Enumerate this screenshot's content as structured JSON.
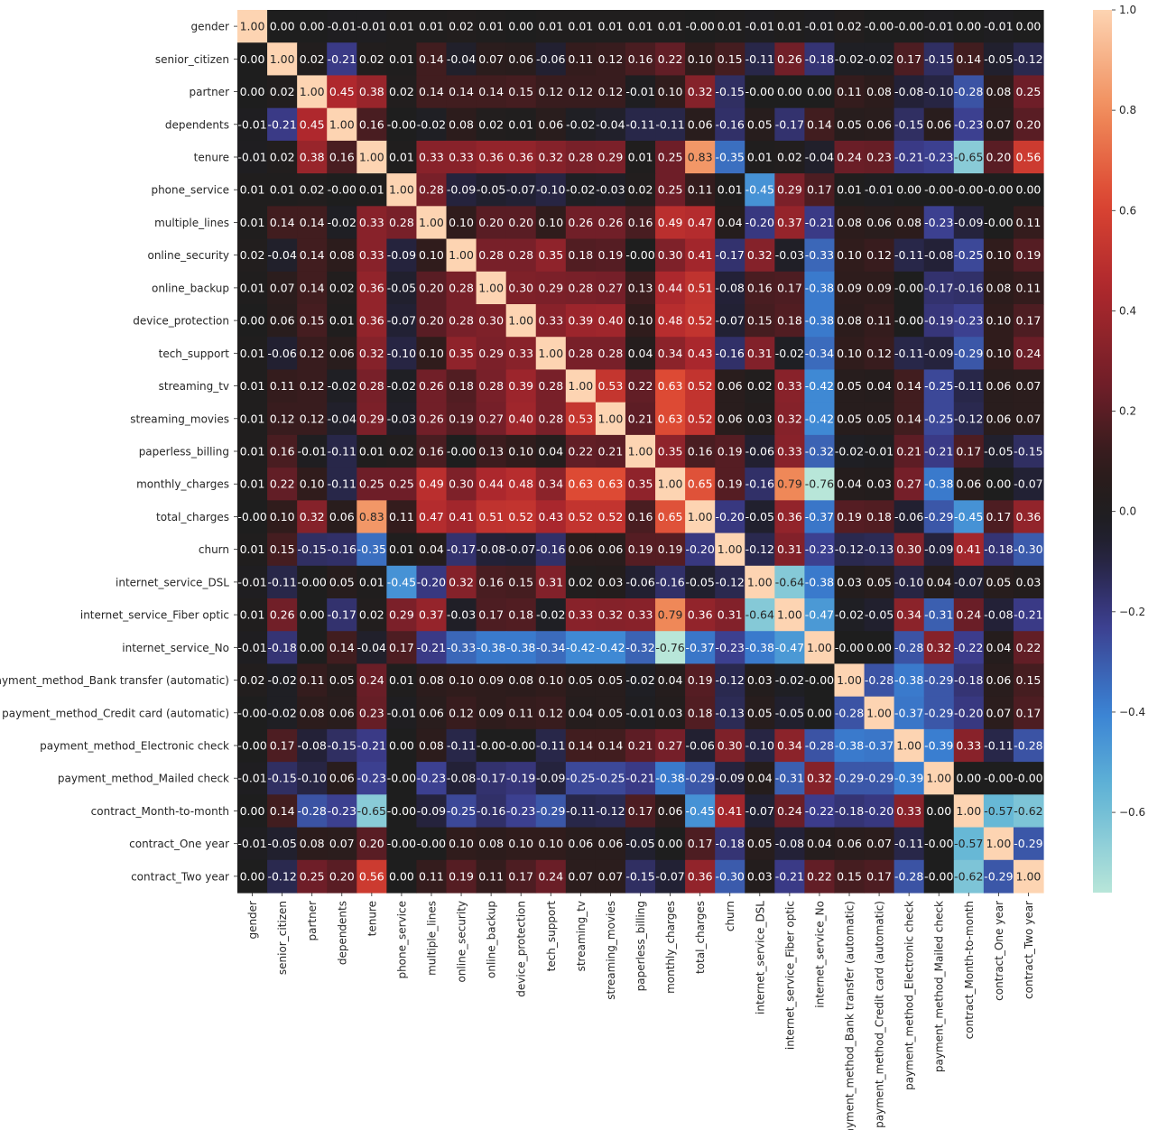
{
  "chart_data": {
    "type": "heatmap",
    "title": "",
    "xlabel": "",
    "ylabel": "",
    "labels": [
      "gender",
      "senior_citizen",
      "partner",
      "dependents",
      "tenure",
      "phone_service",
      "multiple_lines",
      "online_security",
      "online_backup",
      "device_protection",
      "tech_support",
      "streaming_tv",
      "streaming_movies",
      "paperless_billing",
      "monthly_charges",
      "total_charges",
      "churn",
      "internet_service_DSL",
      "internet_service_Fiber optic",
      "internet_service_No",
      "payment_method_Bank transfer (automatic)",
      "payment_method_Credit card (automatic)",
      "payment_method_Electronic check",
      "payment_method_Mailed check",
      "contract_Month-to-month",
      "contract_One year",
      "contract_Two year"
    ],
    "values": [
      [
        "1.00",
        "0.00",
        "0.00",
        "-0.01",
        "-0.01",
        "0.01",
        "0.01",
        "0.02",
        "0.01",
        "0.00",
        "0.01",
        "0.01",
        "0.01",
        "0.01",
        "0.01",
        "-0.00",
        "0.01",
        "-0.01",
        "0.01",
        "-0.01",
        "0.02",
        "-0.00",
        "-0.00",
        "-0.01",
        "0.00",
        "-0.01",
        "0.00"
      ],
      [
        "0.00",
        "1.00",
        "0.02",
        "-0.21",
        "0.02",
        "0.01",
        "0.14",
        "-0.04",
        "0.07",
        "0.06",
        "-0.06",
        "0.11",
        "0.12",
        "0.16",
        "0.22",
        "0.10",
        "0.15",
        "-0.11",
        "0.26",
        "-0.18",
        "-0.02",
        "-0.02",
        "0.17",
        "-0.15",
        "0.14",
        "-0.05",
        "-0.12"
      ],
      [
        "0.00",
        "0.02",
        "1.00",
        "0.45",
        "0.38",
        "0.02",
        "0.14",
        "0.14",
        "0.14",
        "0.15",
        "0.12",
        "0.12",
        "0.12",
        "-0.01",
        "0.10",
        "0.32",
        "-0.15",
        "-0.00",
        "0.00",
        "0.00",
        "0.11",
        "0.08",
        "-0.08",
        "-0.10",
        "-0.28",
        "0.08",
        "0.25"
      ],
      [
        "-0.01",
        "-0.21",
        "0.45",
        "1.00",
        "0.16",
        "-0.00",
        "-0.02",
        "0.08",
        "0.02",
        "0.01",
        "0.06",
        "-0.02",
        "-0.04",
        "-0.11",
        "-0.11",
        "0.06",
        "-0.16",
        "0.05",
        "-0.17",
        "0.14",
        "0.05",
        "0.06",
        "-0.15",
        "0.06",
        "-0.23",
        "0.07",
        "0.20"
      ],
      [
        "-0.01",
        "0.02",
        "0.38",
        "0.16",
        "1.00",
        "0.01",
        "0.33",
        "0.33",
        "0.36",
        "0.36",
        "0.32",
        "0.28",
        "0.29",
        "0.01",
        "0.25",
        "0.83",
        "-0.35",
        "0.01",
        "0.02",
        "-0.04",
        "0.24",
        "0.23",
        "-0.21",
        "-0.23",
        "-0.65",
        "0.20",
        "0.56"
      ],
      [
        "0.01",
        "0.01",
        "0.02",
        "-0.00",
        "0.01",
        "1.00",
        "0.28",
        "-0.09",
        "-0.05",
        "-0.07",
        "-0.10",
        "-0.02",
        "-0.03",
        "0.02",
        "0.25",
        "0.11",
        "0.01",
        "-0.45",
        "0.29",
        "0.17",
        "0.01",
        "-0.01",
        "0.00",
        "-0.00",
        "-0.00",
        "-0.00",
        "0.00"
      ],
      [
        "0.01",
        "0.14",
        "0.14",
        "-0.02",
        "0.33",
        "0.28",
        "1.00",
        "0.10",
        "0.20",
        "0.20",
        "0.10",
        "0.26",
        "0.26",
        "0.16",
        "0.49",
        "0.47",
        "0.04",
        "-0.20",
        "0.37",
        "-0.21",
        "0.08",
        "0.06",
        "0.08",
        "-0.23",
        "-0.09",
        "-0.00",
        "0.11"
      ],
      [
        "0.02",
        "-0.04",
        "0.14",
        "0.08",
        "0.33",
        "-0.09",
        "0.10",
        "1.00",
        "0.28",
        "0.28",
        "0.35",
        "0.18",
        "0.19",
        "-0.00",
        "0.30",
        "0.41",
        "-0.17",
        "0.32",
        "-0.03",
        "-0.33",
        "0.10",
        "0.12",
        "-0.11",
        "-0.08",
        "-0.25",
        "0.10",
        "0.19"
      ],
      [
        "0.01",
        "0.07",
        "0.14",
        "0.02",
        "0.36",
        "-0.05",
        "0.20",
        "0.28",
        "1.00",
        "0.30",
        "0.29",
        "0.28",
        "0.27",
        "0.13",
        "0.44",
        "0.51",
        "-0.08",
        "0.16",
        "0.17",
        "-0.38",
        "0.09",
        "0.09",
        "-0.00",
        "-0.17",
        "-0.16",
        "0.08",
        "0.11"
      ],
      [
        "0.00",
        "0.06",
        "0.15",
        "0.01",
        "0.36",
        "-0.07",
        "0.20",
        "0.28",
        "0.30",
        "1.00",
        "0.33",
        "0.39",
        "0.40",
        "0.10",
        "0.48",
        "0.52",
        "-0.07",
        "0.15",
        "0.18",
        "-0.38",
        "0.08",
        "0.11",
        "-0.00",
        "-0.19",
        "-0.23",
        "0.10",
        "0.17"
      ],
      [
        "0.01",
        "-0.06",
        "0.12",
        "0.06",
        "0.32",
        "-0.10",
        "0.10",
        "0.35",
        "0.29",
        "0.33",
        "1.00",
        "0.28",
        "0.28",
        "0.04",
        "0.34",
        "0.43",
        "-0.16",
        "0.31",
        "-0.02",
        "-0.34",
        "0.10",
        "0.12",
        "-0.11",
        "-0.09",
        "-0.29",
        "0.10",
        "0.24"
      ],
      [
        "0.01",
        "0.11",
        "0.12",
        "-0.02",
        "0.28",
        "-0.02",
        "0.26",
        "0.18",
        "0.28",
        "0.39",
        "0.28",
        "1.00",
        "0.53",
        "0.22",
        "0.63",
        "0.52",
        "0.06",
        "0.02",
        "0.33",
        "-0.42",
        "0.05",
        "0.04",
        "0.14",
        "-0.25",
        "-0.11",
        "0.06",
        "0.07"
      ],
      [
        "0.01",
        "0.12",
        "0.12",
        "-0.04",
        "0.29",
        "-0.03",
        "0.26",
        "0.19",
        "0.27",
        "0.40",
        "0.28",
        "0.53",
        "1.00",
        "0.21",
        "0.63",
        "0.52",
        "0.06",
        "0.03",
        "0.32",
        "-0.42",
        "0.05",
        "0.05",
        "0.14",
        "-0.25",
        "-0.12",
        "0.06",
        "0.07"
      ],
      [
        "0.01",
        "0.16",
        "-0.01",
        "-0.11",
        "0.01",
        "0.02",
        "0.16",
        "-0.00",
        "0.13",
        "0.10",
        "0.04",
        "0.22",
        "0.21",
        "1.00",
        "0.35",
        "0.16",
        "0.19",
        "-0.06",
        "0.33",
        "-0.32",
        "-0.02",
        "-0.01",
        "0.21",
        "-0.21",
        "0.17",
        "-0.05",
        "-0.15"
      ],
      [
        "0.01",
        "0.22",
        "0.10",
        "-0.11",
        "0.25",
        "0.25",
        "0.49",
        "0.30",
        "0.44",
        "0.48",
        "0.34",
        "0.63",
        "0.63",
        "0.35",
        "1.00",
        "0.65",
        "0.19",
        "-0.16",
        "0.79",
        "-0.76",
        "0.04",
        "0.03",
        "0.27",
        "-0.38",
        "0.06",
        "0.00",
        "-0.07"
      ],
      [
        "-0.00",
        "0.10",
        "0.32",
        "0.06",
        "0.83",
        "0.11",
        "0.47",
        "0.41",
        "0.51",
        "0.52",
        "0.43",
        "0.52",
        "0.52",
        "0.16",
        "0.65",
        "1.00",
        "-0.20",
        "-0.05",
        "0.36",
        "-0.37",
        "0.19",
        "0.18",
        "-0.06",
        "-0.29",
        "-0.45",
        "0.17",
        "0.36"
      ],
      [
        "0.01",
        "0.15",
        "-0.15",
        "-0.16",
        "-0.35",
        "0.01",
        "0.04",
        "-0.17",
        "-0.08",
        "-0.07",
        "-0.16",
        "0.06",
        "0.06",
        "0.19",
        "0.19",
        "-0.20",
        "1.00",
        "-0.12",
        "0.31",
        "-0.23",
        "-0.12",
        "-0.13",
        "0.30",
        "-0.09",
        "0.41",
        "-0.18",
        "-0.30"
      ],
      [
        "-0.01",
        "-0.11",
        "-0.00",
        "0.05",
        "0.01",
        "-0.45",
        "-0.20",
        "0.32",
        "0.16",
        "0.15",
        "0.31",
        "0.02",
        "0.03",
        "-0.06",
        "-0.16",
        "-0.05",
        "-0.12",
        "1.00",
        "-0.64",
        "-0.38",
        "0.03",
        "0.05",
        "-0.10",
        "0.04",
        "-0.07",
        "0.05",
        "0.03"
      ],
      [
        "0.01",
        "0.26",
        "0.00",
        "-0.17",
        "0.02",
        "0.29",
        "0.37",
        "-0.03",
        "0.17",
        "0.18",
        "-0.02",
        "0.33",
        "0.32",
        "0.33",
        "0.79",
        "0.36",
        "0.31",
        "-0.64",
        "1.00",
        "-0.47",
        "-0.02",
        "-0.05",
        "0.34",
        "-0.31",
        "0.24",
        "-0.08",
        "-0.21"
      ],
      [
        "-0.01",
        "-0.18",
        "0.00",
        "0.14",
        "-0.04",
        "0.17",
        "-0.21",
        "-0.33",
        "-0.38",
        "-0.38",
        "-0.34",
        "-0.42",
        "-0.42",
        "-0.32",
        "-0.76",
        "-0.37",
        "-0.23",
        "-0.38",
        "-0.47",
        "1.00",
        "-0.00",
        "0.00",
        "-0.28",
        "0.32",
        "-0.22",
        "0.04",
        "0.22"
      ],
      [
        "0.02",
        "-0.02",
        "0.11",
        "0.05",
        "0.24",
        "0.01",
        "0.08",
        "0.10",
        "0.09",
        "0.08",
        "0.10",
        "0.05",
        "0.05",
        "-0.02",
        "0.04",
        "0.19",
        "-0.12",
        "0.03",
        "-0.02",
        "-0.00",
        "1.00",
        "-0.28",
        "-0.38",
        "-0.29",
        "-0.18",
        "0.06",
        "0.15"
      ],
      [
        "-0.00",
        "-0.02",
        "0.08",
        "0.06",
        "0.23",
        "-0.01",
        "0.06",
        "0.12",
        "0.09",
        "0.11",
        "0.12",
        "0.04",
        "0.05",
        "-0.01",
        "0.03",
        "0.18",
        "-0.13",
        "0.05",
        "-0.05",
        "0.00",
        "-0.28",
        "1.00",
        "-0.37",
        "-0.29",
        "-0.20",
        "0.07",
        "0.17"
      ],
      [
        "-0.00",
        "0.17",
        "-0.08",
        "-0.15",
        "-0.21",
        "0.00",
        "0.08",
        "-0.11",
        "-0.00",
        "-0.00",
        "-0.11",
        "0.14",
        "0.14",
        "0.21",
        "0.27",
        "-0.06",
        "0.30",
        "-0.10",
        "0.34",
        "-0.28",
        "-0.38",
        "-0.37",
        "1.00",
        "-0.39",
        "0.33",
        "-0.11",
        "-0.28"
      ],
      [
        "-0.01",
        "-0.15",
        "-0.10",
        "0.06",
        "-0.23",
        "-0.00",
        "-0.23",
        "-0.08",
        "-0.17",
        "-0.19",
        "-0.09",
        "-0.25",
        "-0.25",
        "-0.21",
        "-0.38",
        "-0.29",
        "-0.09",
        "0.04",
        "-0.31",
        "0.32",
        "-0.29",
        "-0.29",
        "-0.39",
        "1.00",
        "0.00",
        "-0.00",
        "-0.00"
      ],
      [
        "0.00",
        "0.14",
        "-0.28",
        "-0.23",
        "-0.65",
        "-0.00",
        "-0.09",
        "-0.25",
        "-0.16",
        "-0.23",
        "-0.29",
        "-0.11",
        "-0.12",
        "0.17",
        "0.06",
        "-0.45",
        "0.41",
        "-0.07",
        "0.24",
        "-0.22",
        "-0.18",
        "-0.20",
        "0.33",
        "0.00",
        "1.00",
        "-0.57",
        "-0.62"
      ],
      [
        "-0.01",
        "-0.05",
        "0.08",
        "0.07",
        "0.20",
        "-0.00",
        "-0.00",
        "0.10",
        "0.08",
        "0.10",
        "0.10",
        "0.06",
        "0.06",
        "-0.05",
        "0.00",
        "0.17",
        "-0.18",
        "0.05",
        "-0.08",
        "0.04",
        "0.06",
        "0.07",
        "-0.11",
        "-0.00",
        "-0.57",
        "1.00",
        "-0.29"
      ],
      [
        "0.00",
        "-0.12",
        "0.25",
        "0.20",
        "0.56",
        "0.00",
        "0.11",
        "0.19",
        "0.11",
        "0.17",
        "0.24",
        "0.07",
        "0.07",
        "-0.15",
        "-0.07",
        "0.36",
        "-0.30",
        "0.03",
        "-0.21",
        "0.22",
        "0.15",
        "0.17",
        "-0.28",
        "-0.00",
        "-0.62",
        "-0.29",
        "1.00"
      ]
    ],
    "colorbar": {
      "vmin": -0.76,
      "vmax": 1.0,
      "center": 0.0,
      "ticks": [
        "-0.6",
        "-0.4",
        "-0.2",
        "0.0",
        "0.2",
        "0.4",
        "0.6",
        "0.8",
        "1.0"
      ],
      "colormap": "icefire",
      "colors": {
        "low": "#b8e6d9",
        "mid_low": "#3b82d4",
        "center": "#1e1e1e",
        "mid_high": "#d63a2a",
        "high": "#fcd3b0"
      }
    },
    "grid": false,
    "legend": "colorbar-right"
  }
}
